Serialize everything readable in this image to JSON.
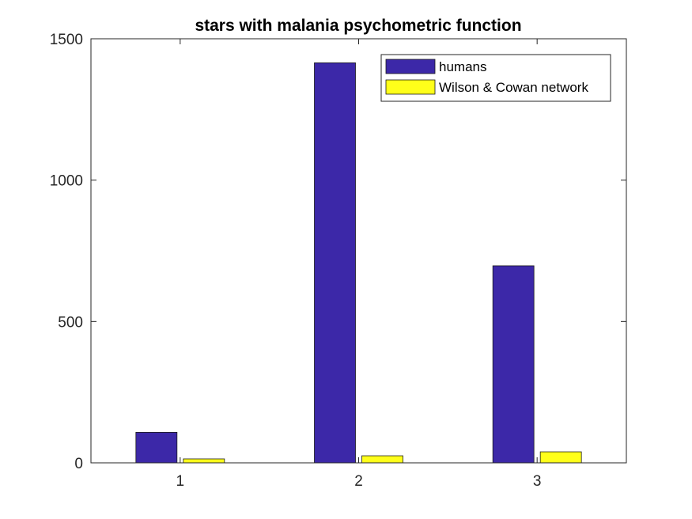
{
  "chart_data": {
    "type": "bar",
    "title": "stars with malania psychometric function",
    "xlabel": "",
    "ylabel": "",
    "categories": [
      "1",
      "2",
      "3"
    ],
    "ylim": [
      0,
      1500
    ],
    "yticks": [
      0,
      500,
      1000,
      1500
    ],
    "yticklabels": [
      "0",
      "500",
      "1000",
      "1500"
    ],
    "grid": false,
    "legend_position": "top-right",
    "series": [
      {
        "name": "humans",
        "color": "#3c28a8",
        "values": [
          108,
          1415,
          697
        ]
      },
      {
        "name": "Wilson & Cowan network",
        "color": "#ffff1a",
        "values": [
          14,
          25,
          39
        ]
      }
    ]
  }
}
